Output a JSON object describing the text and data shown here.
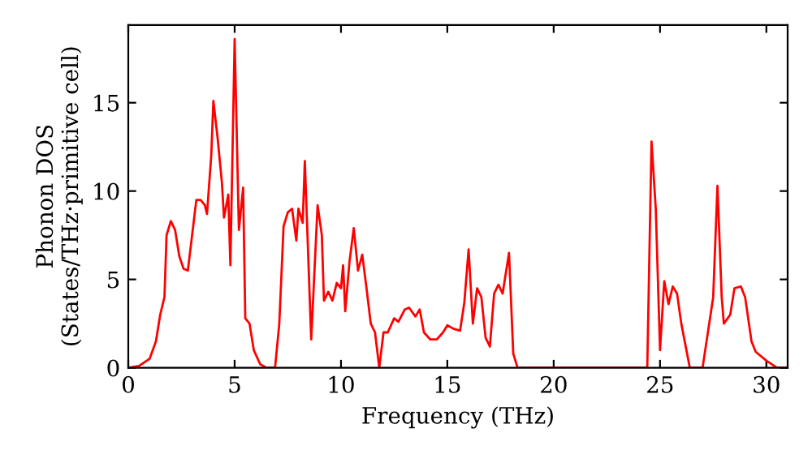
{
  "chart_data": {
    "type": "line",
    "xlabel": "Frequency (THz)",
    "ylabel": "Phonon DOS\n(States/THz·primitive cell)",
    "xlim": [
      0,
      31
    ],
    "ylim": [
      0,
      19.4
    ],
    "xticks": [
      0,
      5,
      10,
      15,
      20,
      25,
      30
    ],
    "yticks": [
      0,
      5,
      10,
      15
    ],
    "grid": false,
    "legend": false,
    "marker": "none",
    "line_style": "solid",
    "series": [
      {
        "color": "#ff0000",
        "x": [
          0,
          0.5,
          1,
          1.3,
          1.5,
          1.7,
          1.8,
          2.0,
          2.2,
          2.4,
          2.6,
          2.8,
          3.0,
          3.2,
          3.4,
          3.6,
          3.7,
          3.9,
          4.0,
          4.2,
          4.4,
          4.5,
          4.7,
          4.8,
          5.0,
          5.2,
          5.4,
          5.5,
          5.7,
          5.9,
          6.2,
          6.5,
          6.9,
          7.1,
          7.3,
          7.5,
          7.7,
          7.9,
          8.0,
          8.2,
          8.3,
          8.6,
          8.9,
          9.1,
          9.2,
          9.4,
          9.6,
          9.8,
          10.0,
          10.1,
          10.2,
          10.4,
          10.6,
          10.8,
          11.0,
          11.2,
          11.4,
          11.6,
          11.8,
          12.0,
          12.2,
          12.5,
          12.7,
          13.0,
          13.2,
          13.5,
          13.7,
          13.9,
          14.2,
          14.5,
          14.8,
          15.0,
          15.3,
          15.6,
          15.8,
          16.0,
          16.2,
          16.4,
          16.6,
          16.8,
          17.0,
          17.2,
          17.4,
          17.6,
          17.9,
          18.1,
          18.3,
          24.4,
          24.6,
          24.8,
          25.0,
          25.2,
          25.4,
          25.6,
          25.8,
          26.0,
          26.4,
          27.0,
          27.5,
          27.7,
          27.9,
          28.0,
          28.3,
          28.5,
          28.8,
          29.0,
          29.3,
          29.5,
          30.0,
          30.5,
          31
        ],
        "values": [
          0,
          0.1,
          0.5,
          1.5,
          3,
          4,
          7.5,
          8.3,
          7.8,
          6.3,
          5.6,
          5.5,
          7.5,
          9.5,
          9.5,
          9.2,
          8.7,
          12,
          15.1,
          13,
          10.5,
          8.5,
          9.8,
          5.8,
          18.6,
          7.8,
          10.2,
          2.8,
          2.5,
          1,
          0.2,
          0,
          0,
          2.5,
          8,
          8.8,
          9,
          7.2,
          9,
          8.2,
          11.7,
          1.6,
          9.2,
          7.5,
          3.8,
          4.3,
          3.8,
          4.8,
          4.5,
          5.8,
          3.2,
          6,
          7.9,
          5.5,
          6.4,
          4.5,
          2.5,
          2,
          0,
          2,
          2,
          2.8,
          2.6,
          3.3,
          3.4,
          2.9,
          3.3,
          2,
          1.6,
          1.6,
          2,
          2.4,
          2.2,
          2.1,
          3.7,
          6.7,
          2.5,
          4.5,
          4,
          1.7,
          1.2,
          4.2,
          4.7,
          4.2,
          6.5,
          0.8,
          0,
          0,
          12.8,
          9,
          1,
          4.9,
          3.6,
          4.6,
          4.2,
          2.5,
          0,
          0,
          4,
          10.3,
          4,
          2.5,
          3,
          4.5,
          4.6,
          4,
          1.5,
          0.9,
          0.4,
          0,
          0
        ]
      }
    ]
  }
}
